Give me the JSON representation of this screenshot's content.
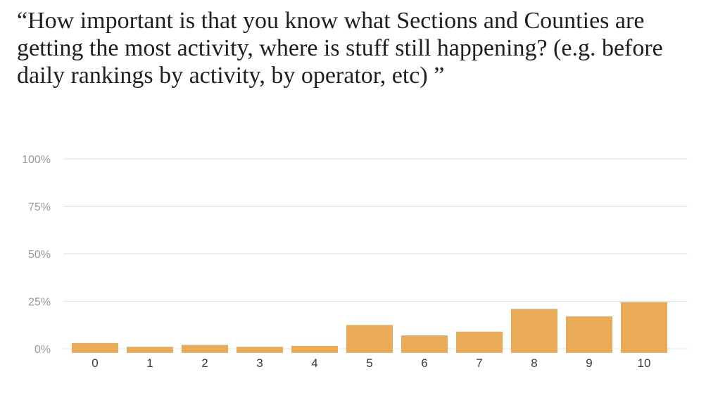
{
  "question": {
    "title": "“How important is that you know what Sections and Counties are getting the most activity, where is stuff still happening? (e.g. before daily rankings by activity, by operator, etc) ”"
  },
  "chart_data": {
    "type": "bar",
    "categories": [
      "0",
      "1",
      "2",
      "3",
      "4",
      "5",
      "6",
      "7",
      "8",
      "9",
      "10"
    ],
    "values": [
      3,
      1,
      2,
      1,
      1.5,
      12.5,
      7,
      9,
      21,
      17,
      24.5
    ],
    "yticks": [
      "0%",
      "25%",
      "50%",
      "75%",
      "100%"
    ],
    "ylim": [
      0,
      100
    ],
    "grid": true,
    "bar_color": "#e8ab57"
  }
}
